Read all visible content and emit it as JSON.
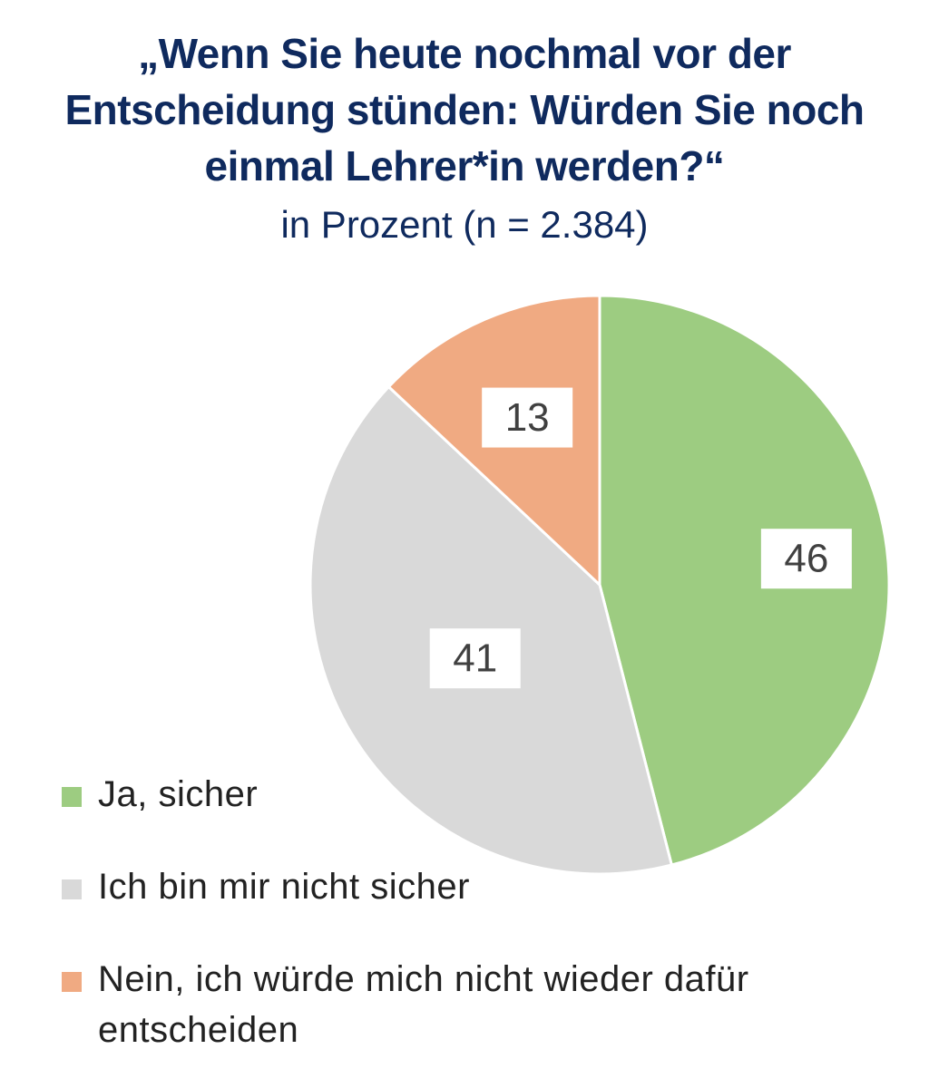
{
  "header": {
    "title_lines": [
      "„Wenn Sie heute nochmal vor der",
      "Entscheidung stünden: Würden Sie noch",
      "einmal Lehrer*in werden?“"
    ],
    "subtitle": "in Prozent (n = 2.384)"
  },
  "chart_data": {
    "type": "pie",
    "title": "„Wenn Sie heute nochmal vor der Entscheidung stünden: Würden Sie noch einmal Lehrer*in werden?“",
    "subtitle": "in Prozent (n = 2.384)",
    "start": "12 o'clock",
    "direction": "clockwise",
    "legend_position": "bottom-left",
    "slices": [
      {
        "label": "Ja, sicher",
        "value": 46,
        "display": "46",
        "color": "#9dcc81"
      },
      {
        "label": "Ich bin mir nicht sicher",
        "value": 41,
        "display": "41",
        "color": "#d9d9d9"
      },
      {
        "label": "Nein, ich würde mich nicht wieder dafür entscheiden",
        "value": 13,
        "display": "13",
        "color": "#f0aa82"
      }
    ]
  }
}
